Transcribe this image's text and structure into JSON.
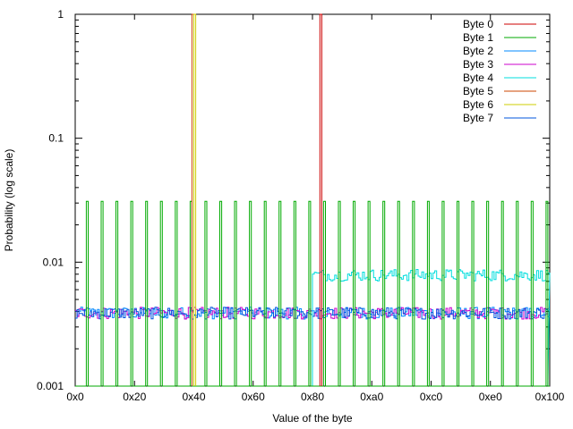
{
  "chart_data": {
    "type": "line",
    "xlabel": "Value of the byte",
    "ylabel": "Probability (log scale)",
    "yscale": "log",
    "xlim": [
      0,
      256
    ],
    "ylim": [
      0.001,
      1
    ],
    "x_ticks": [
      {
        "value": 0,
        "label": "0x0"
      },
      {
        "value": 32,
        "label": "0x20"
      },
      {
        "value": 64,
        "label": "0x40"
      },
      {
        "value": 96,
        "label": "0x60"
      },
      {
        "value": 128,
        "label": "0x80"
      },
      {
        "value": 160,
        "label": "0xa0"
      },
      {
        "value": 192,
        "label": "0xc0"
      },
      {
        "value": 224,
        "label": "0xe0"
      },
      {
        "value": 256,
        "label": "0x100"
      }
    ],
    "y_ticks": [
      {
        "value": 0.001,
        "label": "0.001"
      },
      {
        "value": 0.01,
        "label": "0.01"
      },
      {
        "value": 0.1,
        "label": "0.1"
      },
      {
        "value": 1,
        "label": "1"
      }
    ],
    "legend_position": "top-right",
    "series": [
      {
        "name": "Byte 0",
        "color": "#cc0000",
        "kind": "spike",
        "x": 132,
        "y": 1.0
      },
      {
        "name": "Byte 1",
        "color": "#00aa00",
        "kind": "periodic",
        "start": 6,
        "period": 8,
        "y": 0.031,
        "base": 0.001
      },
      {
        "name": "Byte 2",
        "color": "#0088ff",
        "kind": "noise",
        "x_from": 0,
        "x_to": 256,
        "level": 0.0039
      },
      {
        "name": "Byte 3",
        "color": "#cc00cc",
        "kind": "noise",
        "x_from": 0,
        "x_to": 256,
        "level": 0.0039
      },
      {
        "name": "Byte 4",
        "color": "#00dddd",
        "kind": "noise",
        "x_from": 128,
        "x_to": 256,
        "level": 0.0079
      },
      {
        "name": "Byte 5",
        "color": "#cc4400",
        "kind": "spike",
        "x": 63,
        "y": 1.0
      },
      {
        "name": "Byte 6",
        "color": "#cccc00",
        "kind": "spike",
        "x": 64,
        "y": 1.0
      },
      {
        "name": "Byte 7",
        "color": "#0055dd",
        "kind": "noise",
        "x_from": 0,
        "x_to": 256,
        "level": 0.0039
      }
    ]
  }
}
